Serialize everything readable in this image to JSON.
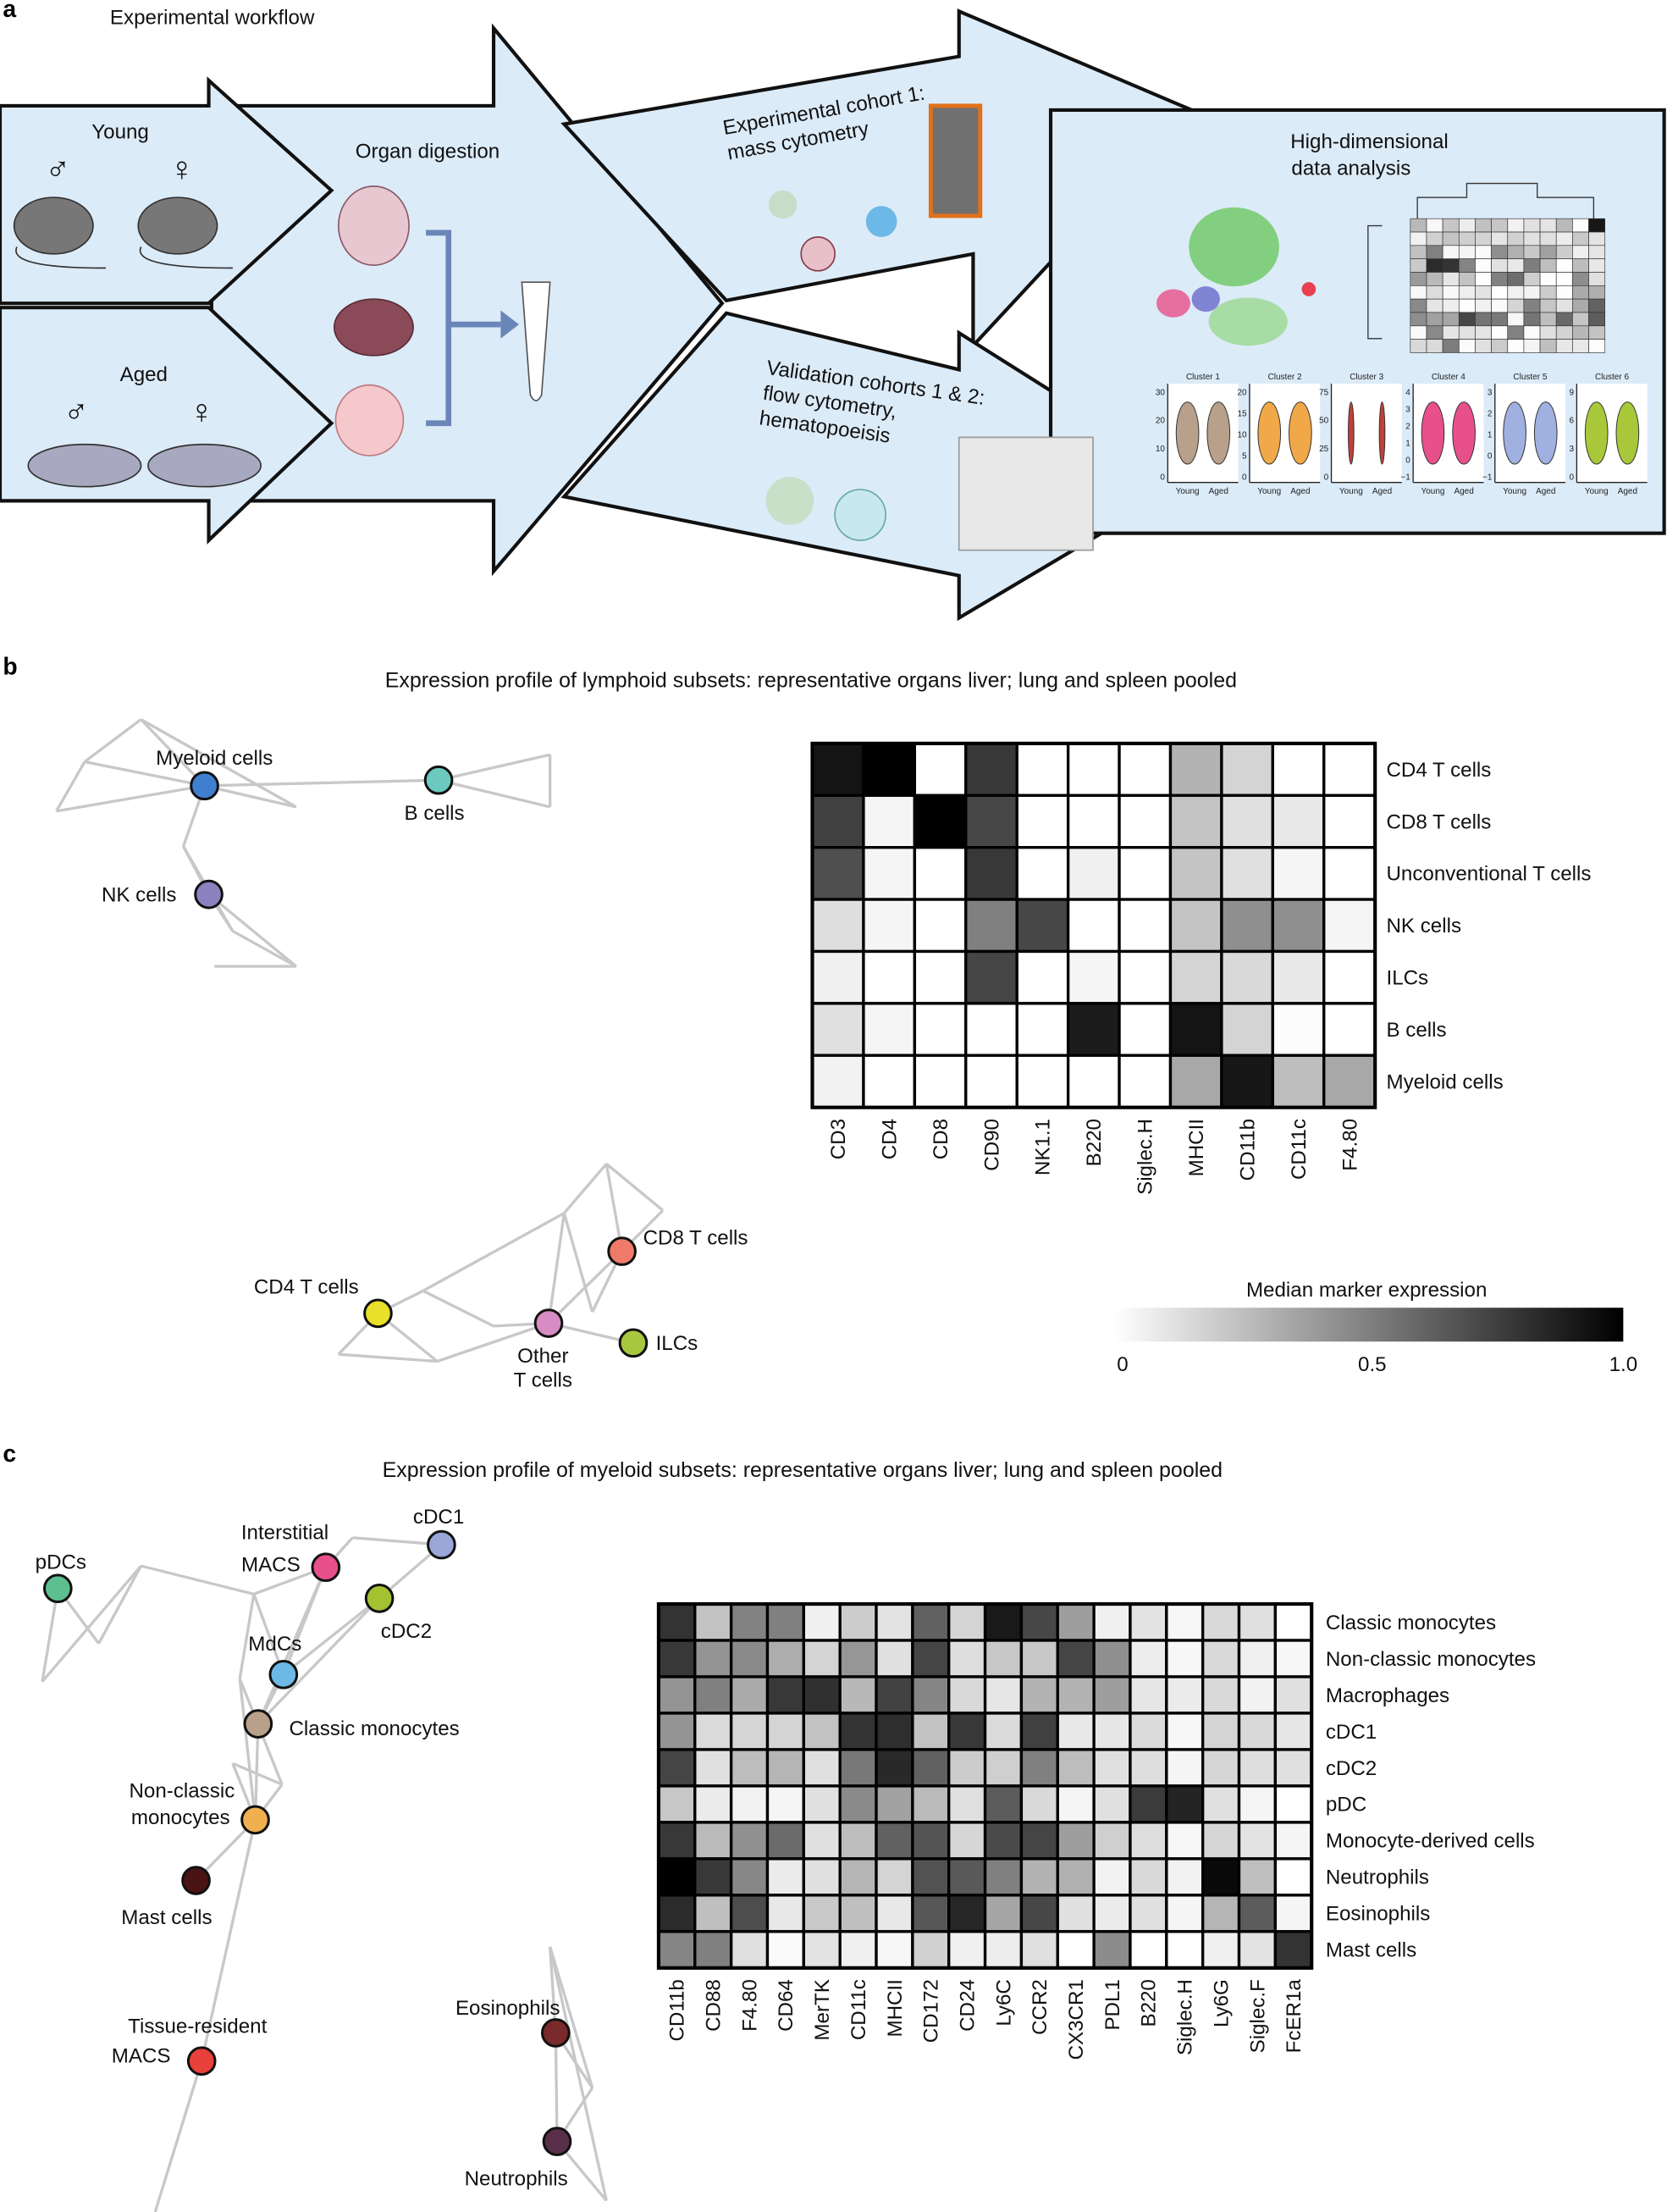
{
  "panel_a": {
    "letter": "a",
    "title": "Experimental workflow",
    "young_label": "Young",
    "aged_label": "Aged",
    "male_symbol": "♂",
    "female_symbol": "♀",
    "organ_label": "Organ digestion",
    "cohort1_line1": "Experimental cohort 1:",
    "cohort1_line2": "mass cytometry",
    "validation_line1": "Validation cohorts 1 & 2:",
    "validation_line2": "flow cytometry,",
    "validation_line3": "hematopoeisis",
    "analysis_line1": "High-dimensional",
    "analysis_line2": "data analysis",
    "arrow_fill": "#dcebf8",
    "violins": [
      {
        "title": "Cluster 1",
        "ticks": [
          "0",
          "10",
          "20",
          "30"
        ],
        "color": "#b8a08a",
        "x_labels": [
          "Young",
          "Aged"
        ]
      },
      {
        "title": "Cluster 2",
        "ticks": [
          "0",
          "5",
          "10",
          "15",
          "20"
        ],
        "color": "#f0a848",
        "x_labels": [
          "Young",
          "Aged"
        ]
      },
      {
        "title": "Cluster 3",
        "ticks": [
          "0",
          "25",
          "50",
          "75"
        ],
        "color": "#c0403a",
        "x_labels": [
          "Young",
          "Aged"
        ]
      },
      {
        "title": "Cluster 4",
        "ticks": [
          "−1",
          "0",
          "1",
          "2",
          "3",
          "4"
        ],
        "color": "#e8508a",
        "x_labels": [
          "Young",
          "Aged"
        ]
      },
      {
        "title": "Cluster 5",
        "ticks": [
          "−1",
          "0",
          "1",
          "2",
          "3"
        ],
        "color": "#a0b0e0",
        "x_labels": [
          "Young",
          "Aged"
        ]
      },
      {
        "title": "Cluster 6",
        "ticks": [
          "0",
          "3",
          "6",
          "9"
        ],
        "color": "#a8c83a",
        "x_labels": [
          "Young",
          "Aged"
        ]
      }
    ]
  },
  "panel_b": {
    "letter": "b",
    "title": "Expression profile of lymphoid subsets: representative organs liver; lung and spleen pooled",
    "network_nodes": [
      {
        "label": "Myeloid cells",
        "color": "#3f7fd0"
      },
      {
        "label": "B cells",
        "color": "#6cc9bf"
      },
      {
        "label": "NK cells",
        "color": "#8b82c0"
      },
      {
        "label": "CD4 T cells",
        "color": "#e8e02a"
      },
      {
        "label": "Other",
        "label2": "T cells",
        "color": "#d98cc3"
      },
      {
        "label": "CD8 T cells",
        "color": "#f07a6a"
      },
      {
        "label": "ILCs",
        "color": "#a7c73f"
      }
    ],
    "colorbar": {
      "title": "Median marker expression",
      "ticks": [
        "0",
        "0.5",
        "1.0"
      ],
      "range": [
        0,
        1
      ],
      "low_color": "#ffffff",
      "high_color": "#000000"
    }
  },
  "panel_c": {
    "letter": "c",
    "title": "Expression profile of myeloid subsets: representative organs liver; lung and spleen pooled",
    "network_nodes": [
      {
        "label": "pDCs",
        "color": "#5dbf8f"
      },
      {
        "label": "Interstitial",
        "label2": "MACS",
        "color": "#e8508a"
      },
      {
        "label": "cDC1",
        "color": "#9aa6d8"
      },
      {
        "label": "cDC2",
        "color": "#a2c232"
      },
      {
        "label": "MdCs",
        "color": "#6cb8e6"
      },
      {
        "label": "Classic monocytes",
        "color": "#b8a08a"
      },
      {
        "label": "Non-classic",
        "label2": "monocytes",
        "color": "#f0b050"
      },
      {
        "label": "Mast cells",
        "color": "#4a1414"
      },
      {
        "label": "Tissue-resident",
        "label2": "MACS",
        "color": "#e8403a"
      },
      {
        "label": "Eosinophils",
        "color": "#7a2a2a"
      },
      {
        "label": "Neutrophils",
        "color": "#5a2f4a"
      }
    ]
  },
  "chart_data": [
    {
      "type": "heatmap",
      "title": "Expression profile of lymphoid subsets: representative organs liver; lung and spleen pooled",
      "columns": [
        "CD3",
        "CD4",
        "CD8",
        "CD90",
        "NK1.1",
        "B220",
        "Siglec.H",
        "MHCII",
        "CD11b",
        "CD11c",
        "F4.80"
      ],
      "rows": [
        "CD4 T cells",
        "CD8 T cells",
        "Unconventional T cells",
        "NK cells",
        "ILCs",
        "B cells",
        "Myeloid cells"
      ],
      "values": [
        [
          0.92,
          1.0,
          0,
          0.78,
          0,
          0,
          0,
          0.3,
          0.17,
          0,
          0
        ],
        [
          0.75,
          0.04,
          1.0,
          0.72,
          0,
          0,
          0,
          0.23,
          0.12,
          0.09,
          0
        ],
        [
          0.69,
          0.04,
          0,
          0.78,
          0,
          0.06,
          0,
          0.23,
          0.12,
          0.04,
          0
        ],
        [
          0.13,
          0.04,
          0,
          0.5,
          0.72,
          0,
          0,
          0.23,
          0.44,
          0.44,
          0.04
        ],
        [
          0.06,
          0,
          0,
          0.73,
          0,
          0.04,
          0,
          0.17,
          0.15,
          0.09,
          0
        ],
        [
          0.12,
          0.04,
          0,
          0,
          0,
          0.89,
          0,
          0.92,
          0.17,
          0.01,
          0
        ],
        [
          0.05,
          0,
          0,
          0,
          0,
          0,
          0,
          0.34,
          0.91,
          0.26,
          0.34
        ]
      ],
      "color_scale": {
        "label": "Median marker expression",
        "range": [
          0,
          1
        ],
        "low": "#ffffff",
        "high": "#000000"
      }
    },
    {
      "type": "heatmap",
      "title": "Expression profile of myeloid subsets: representative organs liver; lung and spleen pooled",
      "columns": [
        "CD11b",
        "CD88",
        "F4.80",
        "CD64",
        "MerTK",
        "CD11c",
        "MHCII",
        "CD172",
        "CD24",
        "Ly6C",
        "CCR2",
        "CX3CR1",
        "PDL1",
        "B220",
        "Siglec.H",
        "Ly6G",
        "Siglec.F",
        "FcER1a"
      ],
      "rows": [
        "Classic monocytes",
        "Non-classic monocytes",
        "Macrophages",
        "cDC1",
        "cDC2",
        "pDC",
        "Monocyte-derived cells",
        "Neutrophils",
        "Eosinophils",
        "Mast cells"
      ],
      "values": [
        [
          0.8,
          0.24,
          0.49,
          0.5,
          0.06,
          0.2,
          0.11,
          0.62,
          0.17,
          0.9,
          0.72,
          0.38,
          0.06,
          0.11,
          0.03,
          0.15,
          0.12,
          0
        ],
        [
          0.78,
          0.42,
          0.46,
          0.32,
          0.17,
          0.41,
          0.12,
          0.73,
          0.13,
          0.22,
          0.22,
          0.73,
          0.44,
          0.07,
          0.03,
          0.15,
          0.06,
          0.03
        ],
        [
          0.42,
          0.5,
          0.33,
          0.78,
          0.81,
          0.28,
          0.74,
          0.48,
          0.15,
          0.1,
          0.3,
          0.3,
          0.38,
          0.1,
          0.08,
          0.15,
          0.05,
          0.12
        ],
        [
          0.42,
          0.14,
          0.16,
          0.17,
          0.24,
          0.8,
          0.82,
          0.24,
          0.78,
          0.14,
          0.75,
          0.09,
          0.1,
          0.14,
          0.03,
          0.17,
          0.15,
          0.1
        ],
        [
          0.73,
          0.12,
          0.26,
          0.29,
          0.12,
          0.53,
          0.84,
          0.62,
          0.2,
          0.19,
          0.5,
          0.26,
          0.12,
          0.13,
          0.04,
          0.16,
          0.13,
          0.12
        ],
        [
          0.22,
          0.08,
          0.05,
          0.04,
          0.12,
          0.46,
          0.37,
          0.27,
          0.12,
          0.64,
          0.15,
          0.04,
          0.12,
          0.77,
          0.86,
          0.12,
          0.04,
          0
        ],
        [
          0.78,
          0.27,
          0.43,
          0.58,
          0.12,
          0.26,
          0.62,
          0.67,
          0.16,
          0.71,
          0.73,
          0.38,
          0.19,
          0.13,
          0.03,
          0.16,
          0.11,
          0.04
        ],
        [
          1.0,
          0.78,
          0.47,
          0.08,
          0.12,
          0.29,
          0.17,
          0.68,
          0.65,
          0.5,
          0.3,
          0.31,
          0.05,
          0.15,
          0.05,
          0.96,
          0.25,
          0
        ],
        [
          0.83,
          0.25,
          0.7,
          0.09,
          0.21,
          0.25,
          0.09,
          0.66,
          0.85,
          0.35,
          0.72,
          0.12,
          0.08,
          0.12,
          0.04,
          0.29,
          0.64,
          0.04
        ],
        [
          0.48,
          0.5,
          0.12,
          0.02,
          0.11,
          0.06,
          0.03,
          0.18,
          0.06,
          0.07,
          0.12,
          0,
          0.45,
          0,
          0,
          0.06,
          0.11,
          0.8
        ]
      ],
      "color_scale": {
        "label": "Median marker expression",
        "range": [
          0,
          1
        ],
        "low": "#ffffff",
        "high": "#000000"
      }
    }
  ]
}
